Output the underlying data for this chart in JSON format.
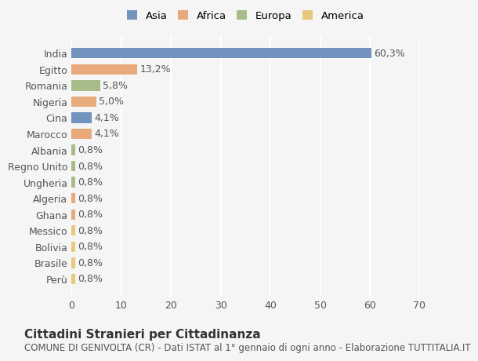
{
  "countries": [
    "India",
    "Egitto",
    "Romania",
    "Nigeria",
    "Cina",
    "Marocco",
    "Albania",
    "Regno Unito",
    "Ungheria",
    "Algeria",
    "Ghana",
    "Messico",
    "Bolivia",
    "Brasile",
    "Perù"
  ],
  "values": [
    60.3,
    13.2,
    5.8,
    5.0,
    4.1,
    4.1,
    0.8,
    0.8,
    0.8,
    0.8,
    0.8,
    0.8,
    0.8,
    0.8,
    0.8
  ],
  "labels": [
    "60,3%",
    "13,2%",
    "5,8%",
    "5,0%",
    "4,1%",
    "4,1%",
    "0,8%",
    "0,8%",
    "0,8%",
    "0,8%",
    "0,8%",
    "0,8%",
    "0,8%",
    "0,8%",
    "0,8%"
  ],
  "continents": [
    "Asia",
    "Africa",
    "Europa",
    "Africa",
    "Asia",
    "Africa",
    "Europa",
    "Europa",
    "Europa",
    "Africa",
    "Africa",
    "America",
    "America",
    "America",
    "America"
  ],
  "colors": {
    "Asia": "#7193be",
    "Africa": "#e8aa7a",
    "Europa": "#a8bc8a",
    "America": "#e8c87a"
  },
  "legend_order": [
    "Asia",
    "Africa",
    "Europa",
    "America"
  ],
  "xlim": [
    0,
    70
  ],
  "xticks": [
    0,
    10,
    20,
    30,
    40,
    50,
    60,
    70
  ],
  "title": "Cittadini Stranieri per Cittadinanza",
  "subtitle": "COMUNE DI GENIVOLTA (CR) - Dati ISTAT al 1° gennaio di ogni anno - Elaborazione TUTTITALIA.IT",
  "background_color": "#f5f5f5",
  "grid_color": "#ffffff",
  "bar_height": 0.65,
  "label_fontsize": 9,
  "tick_fontsize": 9,
  "title_fontsize": 11,
  "subtitle_fontsize": 8.5
}
